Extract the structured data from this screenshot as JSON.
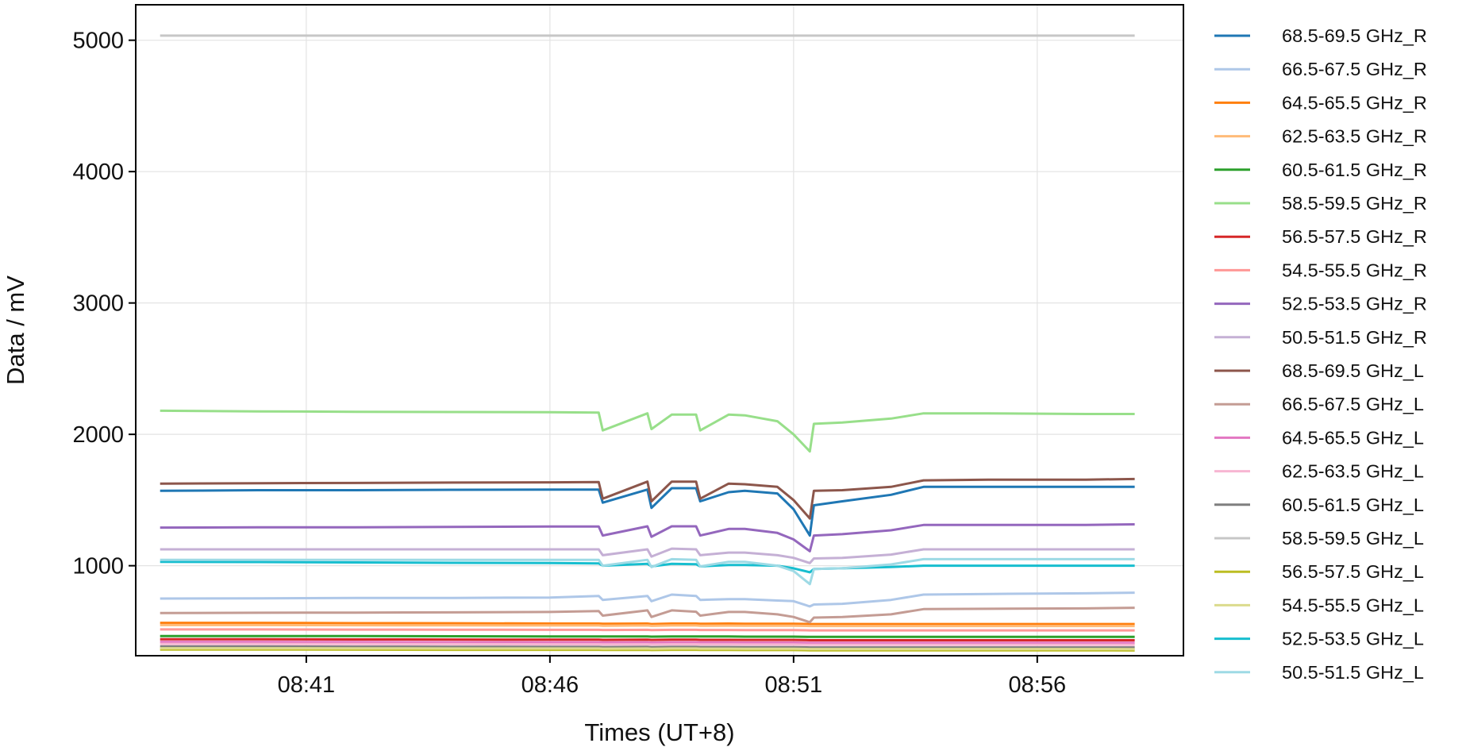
{
  "chart_data": {
    "type": "line",
    "title": "",
    "xlabel": "Times (UT+8)",
    "ylabel": "Data / mV",
    "x_tick_labels": [
      "08:41",
      "08:46",
      "08:51",
      "08:56"
    ],
    "y_ticks": [
      1000,
      2000,
      3000,
      4000,
      5000
    ],
    "y_tick_labels": [
      "1000",
      "2000",
      "3000",
      "4000",
      "5000"
    ],
    "xlim": [
      "08:37:30",
      "08:59:00"
    ],
    "ylim": [
      315,
      5270
    ],
    "grid": true,
    "legend_position": "outside-right",
    "x": [
      "08:38",
      "08:40",
      "08:42",
      "08:44",
      "08:46",
      "08:47",
      "08:47:05",
      "08:48",
      "08:48:05",
      "08:48:30",
      "08:49",
      "08:49:05",
      "08:49:40",
      "08:50",
      "08:50:40",
      "08:51",
      "08:51:20",
      "08:51:25",
      "08:52",
      "08:53",
      "08:53:40",
      "08:55",
      "08:57",
      "08:58"
    ],
    "series": [
      {
        "name": "68.5-69.5 GHz_R",
        "color": "#1f77b4",
        "values": [
          1570,
          1575,
          1575,
          1578,
          1580,
          1580,
          1480,
          1580,
          1440,
          1590,
          1590,
          1490,
          1560,
          1570,
          1550,
          1430,
          1230,
          1460,
          1490,
          1540,
          1600,
          1600,
          1600,
          1600
        ]
      },
      {
        "name": "66.5-67.5 GHz_R",
        "color": "#aec7e8",
        "values": [
          750,
          752,
          755,
          755,
          758,
          770,
          740,
          770,
          730,
          780,
          770,
          740,
          745,
          745,
          735,
          730,
          690,
          705,
          710,
          740,
          780,
          785,
          790,
          795
        ]
      },
      {
        "name": "64.5-65.5 GHz_R",
        "color": "#ff7f0e",
        "values": [
          565,
          565,
          563,
          562,
          560,
          560,
          558,
          560,
          556,
          560,
          560,
          558,
          560,
          558,
          558,
          558,
          556,
          556,
          556,
          556,
          556,
          556,
          556,
          556
        ]
      },
      {
        "name": "62.5-63.5 GHz_R",
        "color": "#ffbb78",
        "values": [
          548,
          548,
          547,
          546,
          545,
          545,
          543,
          545,
          542,
          545,
          545,
          543,
          544,
          543,
          543,
          543,
          541,
          541,
          541,
          541,
          541,
          541,
          541,
          541
        ]
      },
      {
        "name": "60.5-61.5 GHz_R",
        "color": "#2ca02c",
        "values": [
          465,
          465,
          464,
          463,
          462,
          462,
          461,
          462,
          460,
          462,
          462,
          461,
          461,
          460,
          460,
          460,
          458,
          458,
          458,
          458,
          458,
          458,
          458,
          458
        ]
      },
      {
        "name": "58.5-59.5 GHz_R",
        "color": "#98df8a",
        "values": [
          2180,
          2175,
          2172,
          2170,
          2168,
          2165,
          2030,
          2160,
          2040,
          2150,
          2150,
          2030,
          2150,
          2145,
          2100,
          2000,
          1870,
          2080,
          2090,
          2120,
          2160,
          2160,
          2155,
          2155
        ]
      },
      {
        "name": "56.5-57.5 GHz_R",
        "color": "#d62728",
        "values": [
          440,
          440,
          439,
          438,
          437,
          437,
          436,
          437,
          435,
          437,
          437,
          436,
          436,
          435,
          435,
          435,
          433,
          433,
          433,
          433,
          433,
          433,
          433,
          433
        ]
      },
      {
        "name": "54.5-55.5 GHz_R",
        "color": "#ff9896",
        "values": [
          515,
          515,
          514,
          513,
          512,
          512,
          511,
          512,
          510,
          512,
          512,
          511,
          511,
          510,
          510,
          510,
          508,
          508,
          508,
          508,
          508,
          508,
          508,
          508
        ]
      },
      {
        "name": "52.5-53.5 GHz_R",
        "color": "#9467bd",
        "values": [
          1290,
          1292,
          1293,
          1295,
          1298,
          1298,
          1230,
          1300,
          1220,
          1300,
          1300,
          1230,
          1280,
          1280,
          1250,
          1200,
          1110,
          1230,
          1240,
          1270,
          1310,
          1310,
          1310,
          1315
        ]
      },
      {
        "name": "50.5-51.5 GHz_R",
        "color": "#c5b0d5",
        "values": [
          1125,
          1125,
          1125,
          1125,
          1125,
          1125,
          1080,
          1125,
          1070,
          1130,
          1125,
          1080,
          1100,
          1100,
          1080,
          1060,
          1020,
          1055,
          1060,
          1085,
          1125,
          1125,
          1125,
          1125
        ]
      },
      {
        "name": "68.5-69.5 GHz_L",
        "color": "#8c564b",
        "values": [
          1625,
          1628,
          1630,
          1633,
          1635,
          1637,
          1510,
          1640,
          1490,
          1640,
          1640,
          1510,
          1625,
          1620,
          1600,
          1500,
          1360,
          1570,
          1575,
          1600,
          1650,
          1655,
          1655,
          1660
        ]
      },
      {
        "name": "66.5-67.5 GHz_L",
        "color": "#c49c94",
        "values": [
          640,
          642,
          643,
          645,
          648,
          655,
          620,
          660,
          610,
          660,
          650,
          620,
          648,
          648,
          630,
          610,
          570,
          605,
          610,
          630,
          670,
          672,
          675,
          680
        ]
      },
      {
        "name": "64.5-65.5 GHz_L",
        "color": "#e377c2",
        "values": [
          420,
          420,
          419,
          418,
          417,
          417,
          416,
          417,
          415,
          417,
          417,
          416,
          416,
          415,
          415,
          415,
          413,
          413,
          413,
          413,
          413,
          413,
          413,
          413
        ]
      },
      {
        "name": "62.5-63.5 GHz_L",
        "color": "#f7b6d2",
        "values": [
          405,
          405,
          404,
          403,
          402,
          402,
          401,
          402,
          400,
          402,
          402,
          401,
          401,
          400,
          400,
          400,
          398,
          398,
          398,
          398,
          398,
          398,
          398,
          398
        ]
      },
      {
        "name": "60.5-61.5 GHz_L",
        "color": "#7f7f7f",
        "values": [
          385,
          385,
          384,
          383,
          382,
          382,
          381,
          382,
          380,
          382,
          382,
          381,
          381,
          380,
          380,
          380,
          378,
          378,
          378,
          378,
          378,
          378,
          378,
          378
        ]
      },
      {
        "name": "58.5-59.5 GHz_L",
        "color": "#c7c7c7",
        "values": [
          5035,
          5035,
          5035,
          5035,
          5035,
          5035,
          5035,
          5035,
          5035,
          5035,
          5035,
          5035,
          5035,
          5035,
          5035,
          5035,
          5035,
          5035,
          5035,
          5035,
          5035,
          5035,
          5035,
          5035
        ]
      },
      {
        "name": "56.5-57.5 GHz_L",
        "color": "#bcbd22",
        "values": [
          362,
          362,
          361,
          360,
          360,
          360,
          359,
          360,
          358,
          360,
          360,
          359,
          359,
          358,
          358,
          358,
          356,
          356,
          356,
          356,
          356,
          356,
          356,
          355
        ]
      },
      {
        "name": "54.5-55.5 GHz_L",
        "color": "#dbdb8d",
        "values": [
          372,
          372,
          371,
          370,
          370,
          370,
          369,
          370,
          368,
          370,
          370,
          369,
          369,
          368,
          368,
          368,
          366,
          366,
          366,
          366,
          366,
          366,
          366,
          365
        ]
      },
      {
        "name": "52.5-53.5 GHz_L",
        "color": "#17becf",
        "values": [
          1030,
          1028,
          1025,
          1022,
          1020,
          1018,
          1000,
          1015,
          995,
          1015,
          1012,
          995,
          1005,
          1005,
          1000,
          980,
          950,
          975,
          980,
          990,
          1000,
          1000,
          1000,
          1000
        ]
      },
      {
        "name": "50.5-51.5 GHz_L",
        "color": "#9edae5",
        "values": [
          1045,
          1045,
          1045,
          1045,
          1045,
          1045,
          1000,
          1045,
          990,
          1050,
          1045,
          995,
          1030,
          1030,
          1000,
          960,
          860,
          975,
          980,
          1010,
          1050,
          1050,
          1050,
          1050
        ]
      }
    ]
  }
}
